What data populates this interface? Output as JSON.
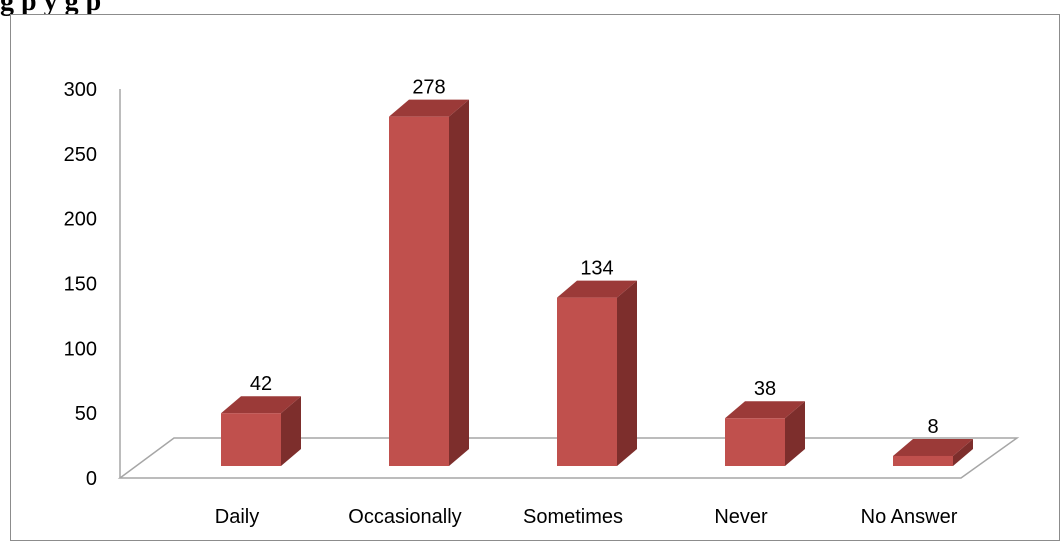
{
  "caption": "g                    p y           g                p",
  "chart_data": {
    "type": "bar",
    "style": "3d-column",
    "categories": [
      "Daily",
      "Occasionally",
      "Sometimes",
      "Never",
      "No Answer"
    ],
    "values": [
      42,
      278,
      134,
      38,
      8
    ],
    "data_labels": [
      "42",
      "278",
      "134",
      "38",
      "8"
    ],
    "y_ticks": [
      "0",
      "50",
      "100",
      "150",
      "200",
      "250",
      "300"
    ],
    "ylim": [
      0,
      300
    ],
    "grid": false,
    "legend": "none",
    "title": "",
    "xlabel": "",
    "ylabel": "",
    "colors": {
      "bar_front": "#c0504d",
      "bar_top": "#9b3a38",
      "bar_side": "#7d2e2c",
      "floor_stroke": "#a6a6a6"
    }
  }
}
